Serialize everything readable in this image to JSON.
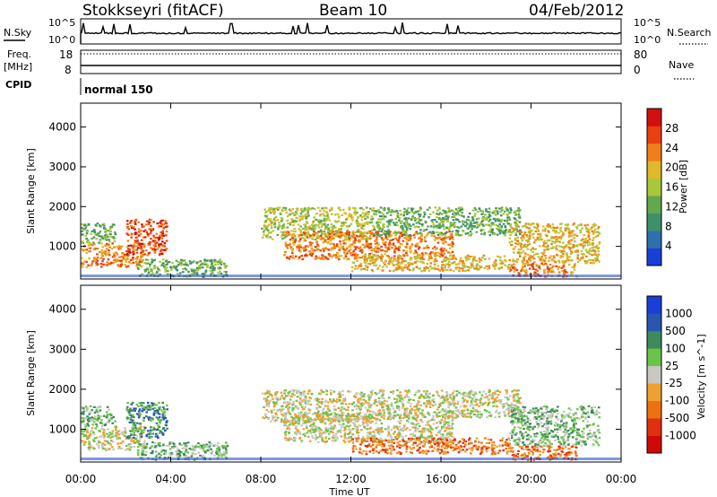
{
  "header": {
    "station": "Stokkseyri (fitACF)",
    "beam": "Beam 10",
    "date": "04/Feb/2012"
  },
  "top_panels": {
    "nsky_label": "N.Sky",
    "nsearch_label": "N.Search",
    "nsky_ticks": [
      "10^5",
      "10^0"
    ],
    "nsearch_ticks": [
      "10^5",
      "10^0"
    ],
    "freq_label_line1": "Freq.",
    "freq_label_line2": "[MHz]",
    "freq_ticks": [
      "18",
      "8"
    ],
    "nave_label": "Nave",
    "nave_ticks": [
      "80",
      "0"
    ],
    "cpid_label": "CPID",
    "cpid_value": "normal 150"
  },
  "colors": {
    "power_scale": [
      "#1a3fd6",
      "#2f6fae",
      "#3f8f6a",
      "#63a84e",
      "#a8c83a",
      "#e0b92a",
      "#f07f1a",
      "#e84010",
      "#d21010"
    ],
    "velocity_scale": [
      "#1a3fd6",
      "#2a56b0",
      "#3d8a5a",
      "#6cc34a",
      "#c8c8c0",
      "#f0a030",
      "#f07010",
      "#e03010",
      "#d00808"
    ],
    "gray": "#c8c8c0"
  },
  "chart_data": [
    {
      "type": "heatmap",
      "title": "Power",
      "ylabel": "Slant Range [km]",
      "yticks": [
        "1000",
        "2000",
        "3000",
        "4000"
      ],
      "ylim": [
        180,
        4600
      ],
      "xlim": [
        0,
        24
      ],
      "xticks": [
        "00:00",
        "04:00",
        "08:00",
        "12:00",
        "16:00",
        "20:00",
        "00:00"
      ],
      "colorbar_label": "Power [dB]",
      "colorbar_ticks": [
        "4",
        "8",
        "12",
        "16",
        "20",
        "24",
        "28"
      ],
      "regions": [
        {
          "t0": 0.0,
          "t1": 2.8,
          "r0": 500,
          "r1": 1100,
          "level": 6
        },
        {
          "t0": 0.0,
          "t1": 1.5,
          "r0": 1100,
          "r1": 1600,
          "level": 3
        },
        {
          "t0": 2.0,
          "t1": 3.8,
          "r0": 800,
          "r1": 1700,
          "level": 7
        },
        {
          "t0": 2.5,
          "t1": 6.5,
          "r0": 250,
          "r1": 700,
          "level": 3
        },
        {
          "t0": 8.0,
          "t1": 13.0,
          "r0": 1200,
          "r1": 2000,
          "level": 4
        },
        {
          "t0": 9.0,
          "t1": 16.5,
          "r0": 700,
          "r1": 1400,
          "level": 6
        },
        {
          "t0": 12.0,
          "t1": 19.0,
          "r0": 400,
          "r1": 800,
          "level": 5
        },
        {
          "t0": 13.0,
          "t1": 19.5,
          "r0": 1300,
          "r1": 2000,
          "level": 3
        },
        {
          "t0": 19.0,
          "t1": 23.0,
          "r0": 600,
          "r1": 1600,
          "level": 5
        },
        {
          "t0": 19.0,
          "t1": 22.0,
          "r0": 250,
          "r1": 600,
          "level": 6
        }
      ]
    },
    {
      "type": "heatmap",
      "title": "Velocity",
      "ylabel": "Slant Range [km]",
      "yticks": [
        "1000",
        "2000",
        "3000",
        "4000"
      ],
      "ylim": [
        180,
        4600
      ],
      "xlim": [
        0,
        24
      ],
      "xticks": [
        "00:00",
        "04:00",
        "08:00",
        "12:00",
        "16:00",
        "20:00",
        "00:00"
      ],
      "xlabel": "Time UT",
      "colorbar_label": "Velocity [m s^-1]",
      "colorbar_ticks": [
        "1000",
        "500",
        "100",
        "25",
        "-25",
        "-100",
        "-500",
        "-1000"
      ],
      "regions": [
        {
          "t0": 0.0,
          "t1": 2.8,
          "r0": 500,
          "r1": 1100,
          "level": 4
        },
        {
          "t0": 0.0,
          "t1": 1.5,
          "r0": 1100,
          "r1": 1600,
          "level": 3
        },
        {
          "t0": 2.0,
          "t1": 3.8,
          "r0": 800,
          "r1": 1700,
          "level": 2
        },
        {
          "t0": 2.5,
          "t1": 6.5,
          "r0": 250,
          "r1": 700,
          "level": 3
        },
        {
          "t0": 8.0,
          "t1": 13.0,
          "r0": 1200,
          "r1": 2000,
          "level": 4
        },
        {
          "t0": 9.0,
          "t1": 16.5,
          "r0": 700,
          "r1": 1400,
          "level": 4
        },
        {
          "t0": 12.0,
          "t1": 19.0,
          "r0": 400,
          "r1": 800,
          "level": 6
        },
        {
          "t0": 13.0,
          "t1": 19.5,
          "r0": 1300,
          "r1": 2000,
          "level": 4
        },
        {
          "t0": 19.0,
          "t1": 23.0,
          "r0": 600,
          "r1": 1600,
          "level": 3
        },
        {
          "t0": 19.0,
          "t1": 22.0,
          "r0": 250,
          "r1": 600,
          "level": 6
        }
      ]
    }
  ]
}
